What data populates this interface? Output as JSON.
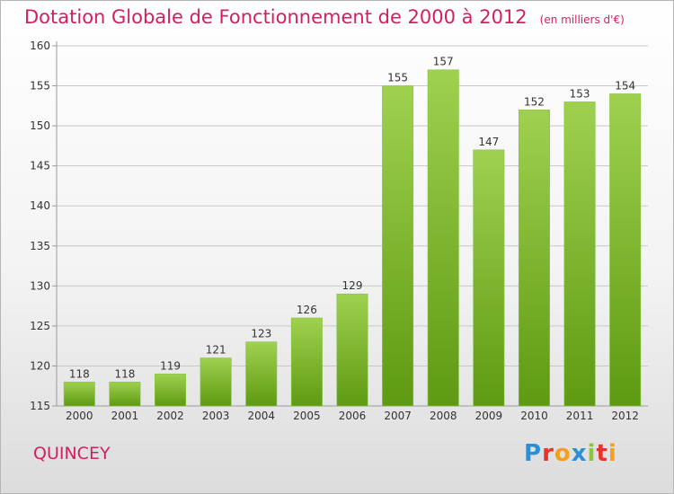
{
  "header": {
    "title": "Dotation Globale de Fonctionnement de 2000 à 2012",
    "unit": "(en milliers d'€)"
  },
  "footer": {
    "commune": "QUINCEY",
    "logo_text": "Proxiti",
    "logo_colors": [
      "#2a8fd4",
      "#e8322b",
      "#f4a01b",
      "#2a8fd4",
      "#8cc63f",
      "#e8322b",
      "#f4a01b"
    ]
  },
  "colors": {
    "title": "#d21f63",
    "bar_light": "#9fd14f",
    "bar_dark": "#5e9a12",
    "grid": "#c8c8c8",
    "axis": "#9a9a9a",
    "label": "#333333"
  },
  "chart_data": {
    "type": "bar",
    "categories": [
      "2000",
      "2001",
      "2002",
      "2003",
      "2004",
      "2005",
      "2006",
      "2007",
      "2008",
      "2009",
      "2010",
      "2011",
      "2012"
    ],
    "values": [
      118,
      118,
      119,
      121,
      123,
      126,
      129,
      155,
      157,
      147,
      152,
      153,
      154
    ],
    "data_labels": [
      "118",
      "118",
      "119",
      "121",
      "123",
      "126",
      "129",
      "155",
      "157",
      "147",
      "152",
      "153",
      "154"
    ],
    "ylim": [
      115,
      160
    ],
    "yticks": [
      115,
      120,
      125,
      130,
      135,
      140,
      145,
      150,
      155,
      160
    ],
    "grid": true
  }
}
